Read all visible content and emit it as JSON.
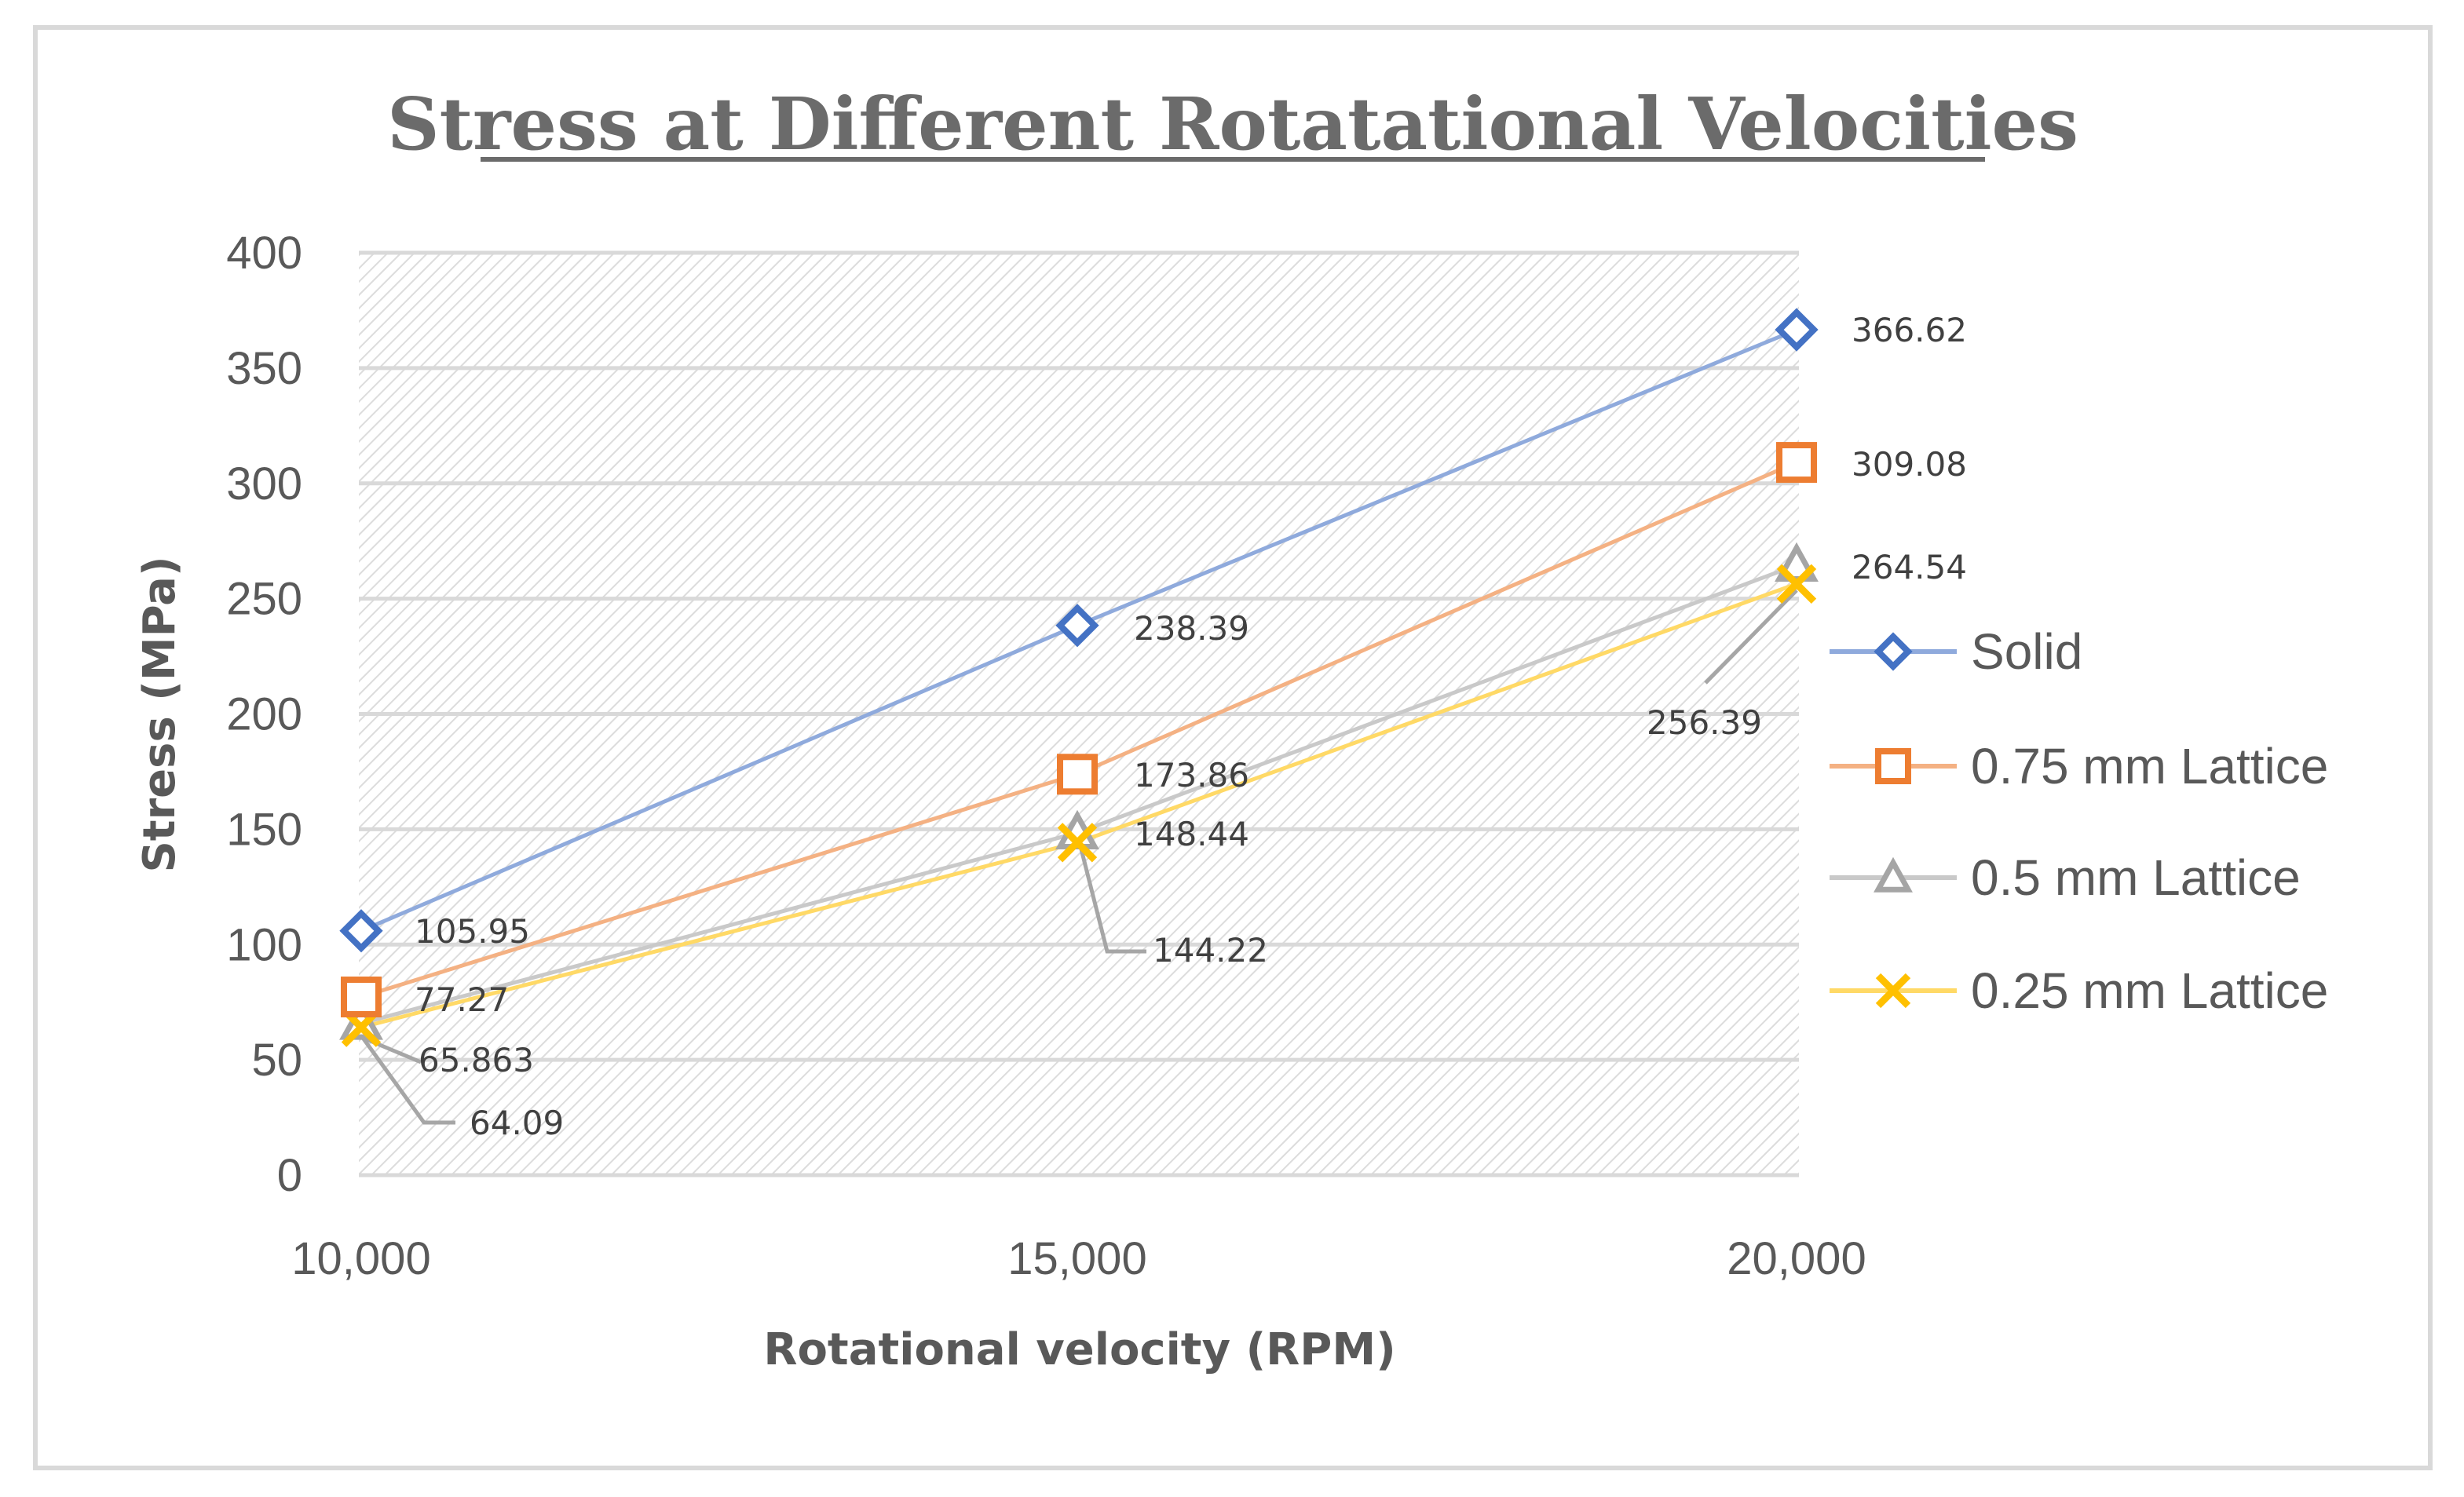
{
  "chart_data": {
    "type": "line",
    "title": "Stress at Different Rotatational Velocities",
    "xlabel": "Rotational velocity (RPM)",
    "ylabel": "Stress (MPa)",
    "categories": [
      "10,000",
      "15,000",
      "20,000"
    ],
    "ylim": [
      0,
      400
    ],
    "yticks": [
      "0",
      "50",
      "100",
      "150",
      "200",
      "250",
      "300",
      "350",
      "400"
    ],
    "grid": true,
    "legend_position": "right",
    "series": [
      {
        "name": "Solid",
        "color": "#4472c4",
        "line_color": "#8faadc",
        "marker": "diamond",
        "values": [
          105.95,
          238.39,
          366.62
        ],
        "labels": [
          "105.95",
          "238.39",
          "366.62"
        ]
      },
      {
        "name": "0.75 mm Lattice",
        "color": "#ed7d31",
        "line_color": "#f4b183",
        "marker": "square",
        "values": [
          77.27,
          173.86,
          309.08
        ],
        "labels": [
          "77.27",
          "173.86",
          "309.08"
        ]
      },
      {
        "name": "0.5 mm Lattice",
        "color": "#a5a5a5",
        "line_color": "#c9c9c9",
        "marker": "triangle",
        "values": [
          65.863,
          148.44,
          264.54
        ],
        "labels": [
          "65.863",
          "148.44",
          "264.54"
        ]
      },
      {
        "name": "0.25 mm Lattice",
        "color": "#ffc000",
        "line_color": "#ffd966",
        "marker": "x",
        "values": [
          64.09,
          144.22,
          256.39
        ],
        "labels": [
          "64.09",
          "144.22",
          "256.39"
        ]
      }
    ]
  }
}
